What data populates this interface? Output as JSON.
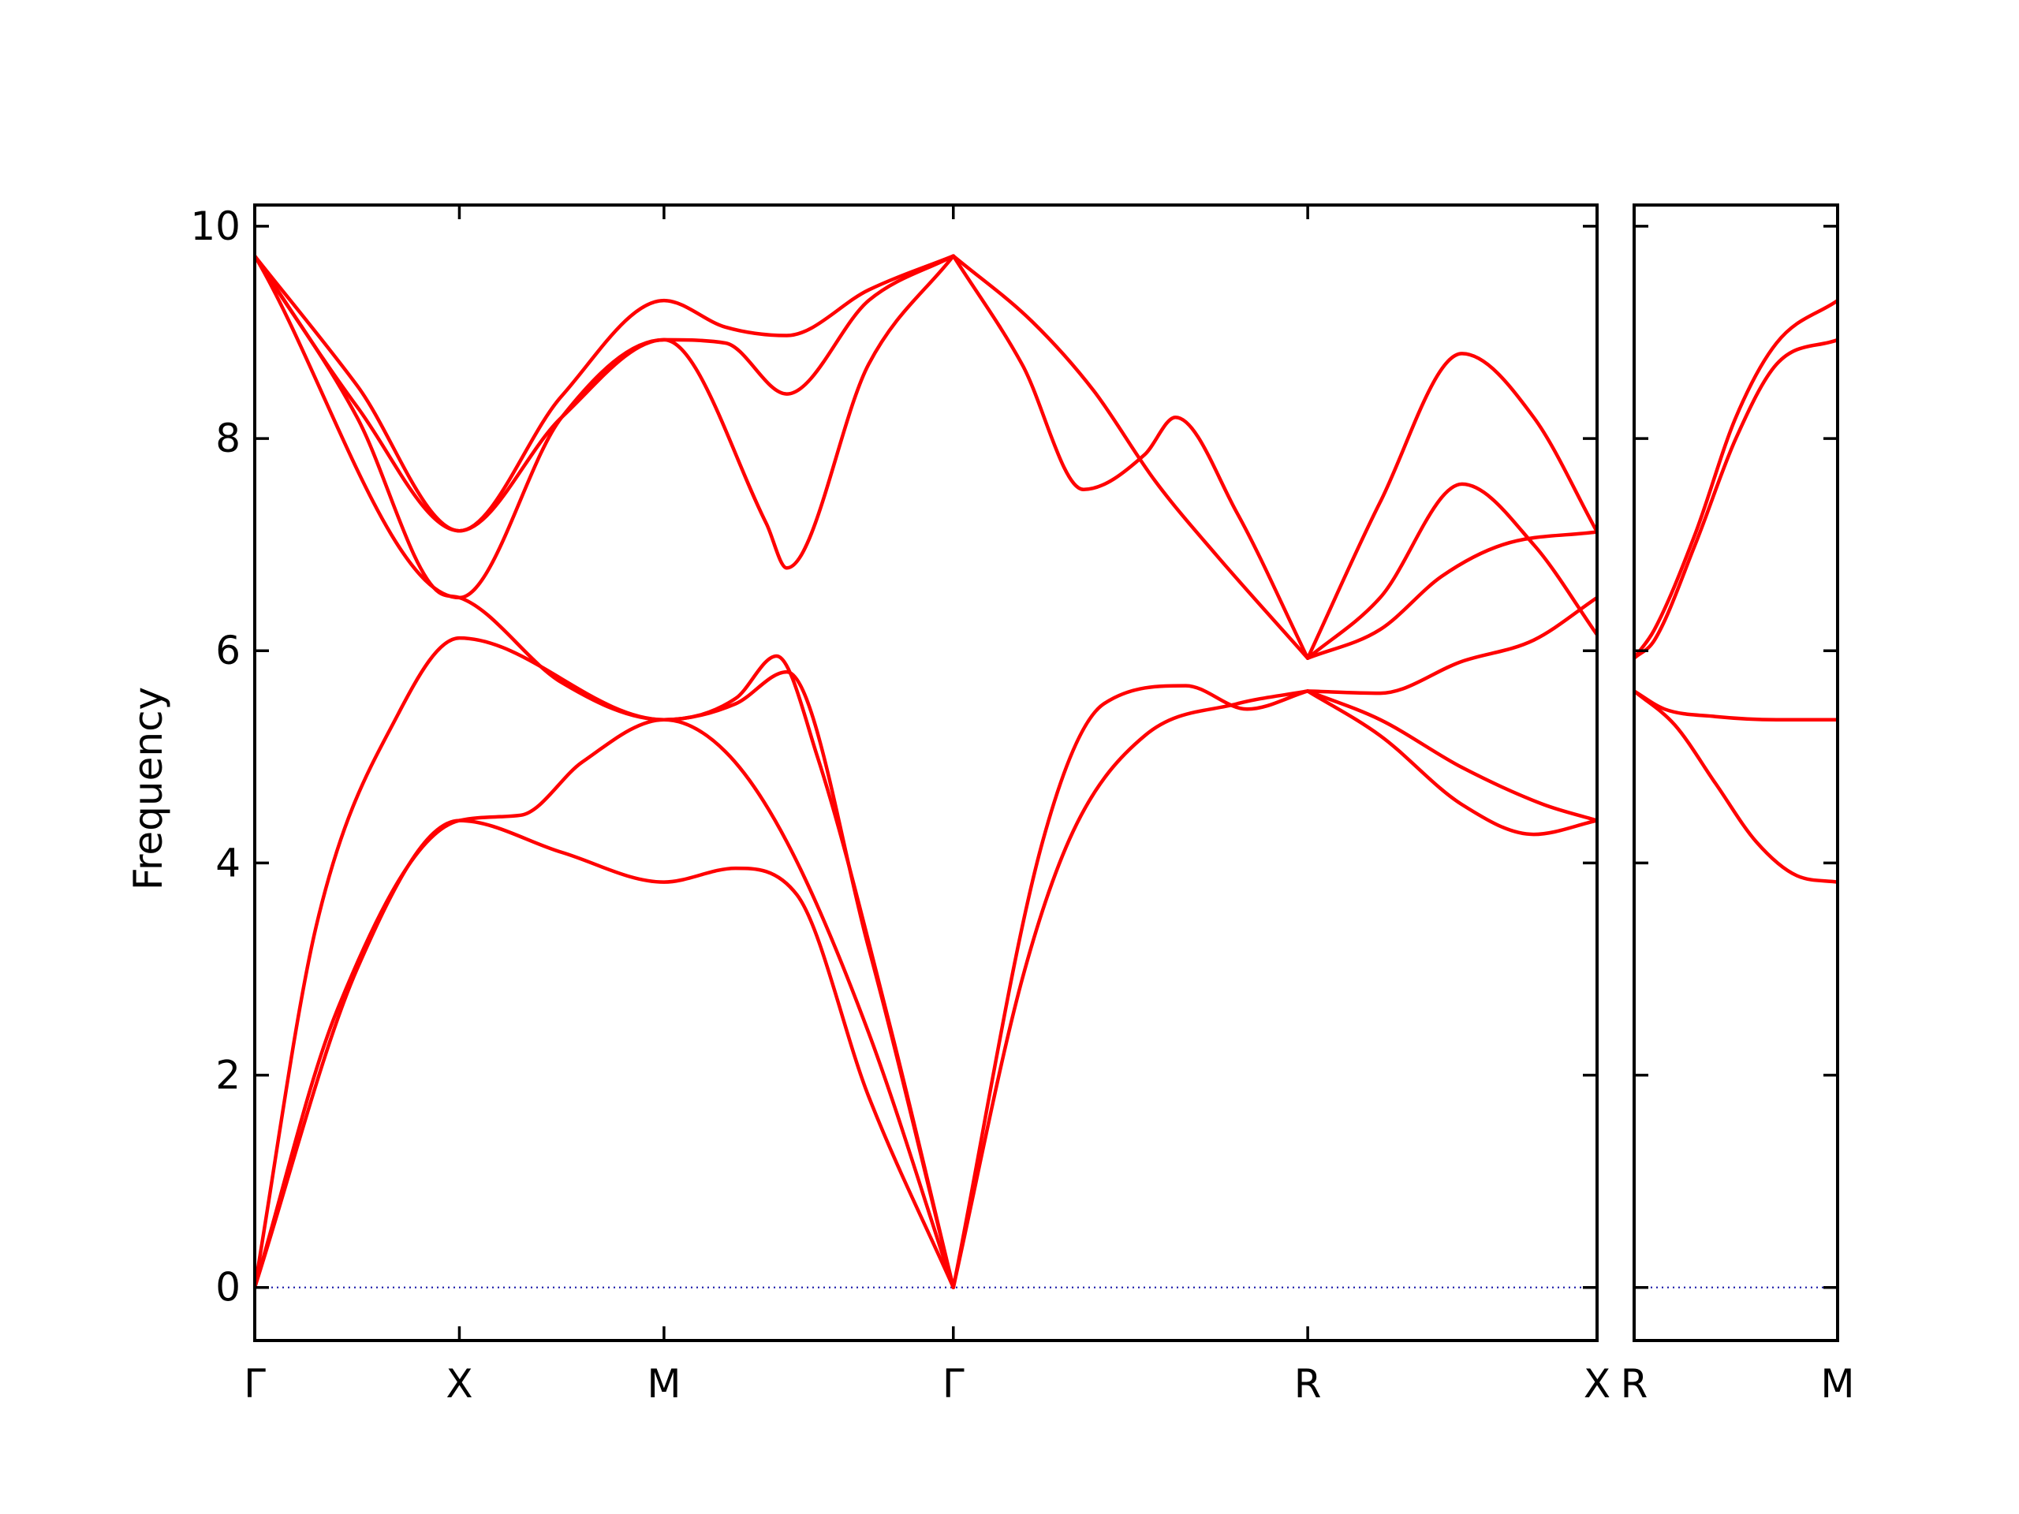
{
  "chart_data": {
    "type": "line",
    "ylabel": "Frequency",
    "ylim": [
      -0.5,
      10.2
    ],
    "yticks": [
      0,
      2,
      4,
      6,
      8,
      10
    ],
    "grid": false,
    "colors": {
      "bands": "#ff0000",
      "zero_line": "#1a1aa8",
      "frame": "#000000"
    },
    "panels": [
      {
        "xlim": [
          0,
          6.56
        ],
        "xticks": [
          {
            "x": 0,
            "label": "Γ"
          },
          {
            "x": 1,
            "label": "X"
          },
          {
            "x": 2,
            "label": "M"
          },
          {
            "x": 3.414,
            "label": "Γ"
          },
          {
            "x": 5.146,
            "label": "R"
          },
          {
            "x": 6.56,
            "label": "X"
          }
        ],
        "series": [
          {
            "x": [
              0,
              0.5,
              1,
              1.5,
              2,
              2.35,
              2.65,
              3.0,
              3.414
            ],
            "y": [
              0,
              3.0,
              4.4,
              4.1,
              3.82,
              3.95,
              3.7,
              1.8,
              0
            ]
          },
          {
            "x": [
              0,
              0.4,
              1,
              1.3,
              1.6,
              2,
              2.3,
              2.6,
              3.0,
              3.414
            ],
            "y": [
              0,
              2.6,
              4.4,
              4.45,
              4.95,
              5.35,
              5.05,
              4.2,
              2.4,
              0
            ]
          },
          {
            "x": [
              0,
              0.3,
              0.7,
              1,
              2,
              2.35,
              2.55,
              2.75,
              3.1,
              3.414
            ],
            "y": [
              0,
              3.4,
              5.4,
              6.12,
              5.35,
              5.55,
              5.95,
              5.0,
              2.5,
              0
            ]
          },
          {
            "x": [
              0,
              0.5,
              0.9,
              1.0,
              1.5,
              2,
              2.35,
              2.6,
              3.0,
              3.414
            ],
            "y": [
              9.72,
              8.2,
              6.55,
              6.5,
              5.7,
              5.35,
              5.5,
              5.8,
              3.2,
              0
            ]
          },
          {
            "x": [
              0,
              1,
              1.5,
              2,
              2.5,
              2.6,
              3.0,
              3.414
            ],
            "y": [
              9.72,
              6.5,
              8.2,
              8.93,
              7.2,
              6.78,
              8.7,
              9.72
            ]
          },
          {
            "x": [
              0,
              0.5,
              1,
              1.5,
              2,
              2.3,
              2.6,
              3.0,
              3.414
            ],
            "y": [
              9.72,
              8.3,
              7.13,
              8.2,
              8.93,
              8.9,
              8.42,
              9.3,
              9.72
            ]
          },
          {
            "x": [
              0,
              0.5,
              1,
              1.5,
              2,
              2.3,
              2.6,
              3.0,
              3.414
            ],
            "y": [
              9.72,
              8.5,
              7.13,
              8.4,
              9.3,
              9.05,
              8.97,
              9.4,
              9.72
            ]
          },
          {
            "x": [
              3.414,
              3.85,
              4.15,
              4.55,
              4.85,
              5.146
            ],
            "y": [
              0,
              4.2,
              5.5,
              5.67,
              5.45,
              5.62
            ]
          },
          {
            "x": [
              3.414,
              3.75,
              4.0,
              4.35,
              4.8,
              5.146
            ],
            "y": [
              0,
              2.9,
              4.3,
              5.2,
              5.5,
              5.62
            ]
          },
          {
            "x": [
              3.414,
              3.75,
              4.05,
              4.35,
              4.5,
              4.8,
              5.146
            ],
            "y": [
              9.72,
              8.7,
              7.52,
              7.85,
              8.2,
              7.3,
              5.93
            ]
          },
          {
            "x": [
              3.414,
              3.8,
              4.1,
              4.4,
              4.7,
              5.146
            ],
            "y": [
              9.72,
              9.1,
              8.45,
              7.6,
              6.9,
              5.93
            ]
          },
          {
            "x": [
              5.146,
              5.5,
              5.9,
              6.25,
              6.56
            ],
            "y": [
              5.62,
              5.2,
              4.55,
              4.27,
              4.4
            ]
          },
          {
            "x": [
              5.146,
              5.5,
              5.9,
              6.3,
              6.56
            ],
            "y": [
              5.62,
              5.35,
              4.9,
              4.55,
              4.4
            ]
          },
          {
            "x": [
              5.146,
              5.5,
              5.9,
              6.25,
              6.56
            ],
            "y": [
              5.62,
              5.6,
              5.9,
              6.1,
              6.5
            ]
          },
          {
            "x": [
              5.146,
              5.5,
              5.8,
              6.1,
              6.56
            ],
            "y": [
              5.93,
              6.2,
              6.7,
              7.0,
              7.12
            ]
          },
          {
            "x": [
              5.146,
              5.5,
              5.9,
              6.25,
              6.56
            ],
            "y": [
              5.93,
              6.5,
              7.57,
              7.0,
              6.15
            ]
          },
          {
            "x": [
              5.146,
              5.5,
              5.9,
              6.25,
              6.56
            ],
            "y": [
              5.93,
              7.4,
              8.8,
              8.2,
              7.12
            ]
          }
        ]
      },
      {
        "xlim": [
          0,
          1
        ],
        "xticks": [
          {
            "x": 0,
            "label": "R"
          },
          {
            "x": 1,
            "label": "M"
          }
        ],
        "series": [
          {
            "x": [
              0,
              0.15,
              0.4,
              0.7,
              1
            ],
            "y": [
              5.62,
              5.45,
              5.38,
              5.35,
              5.35
            ]
          },
          {
            "x": [
              0,
              0.2,
              0.4,
              0.6,
              0.8,
              1
            ],
            "y": [
              5.62,
              5.3,
              4.75,
              4.2,
              3.88,
              3.82
            ]
          },
          {
            "x": [
              0,
              0.1,
              0.3,
              0.5,
              0.7,
              1
            ],
            "y": [
              5.93,
              6.1,
              7.0,
              8.0,
              8.7,
              8.93
            ]
          },
          {
            "x": [
              0,
              0.1,
              0.3,
              0.5,
              0.7,
              1
            ],
            "y": [
              5.93,
              6.2,
              7.1,
              8.2,
              8.9,
              9.3
            ]
          }
        ]
      }
    ]
  }
}
